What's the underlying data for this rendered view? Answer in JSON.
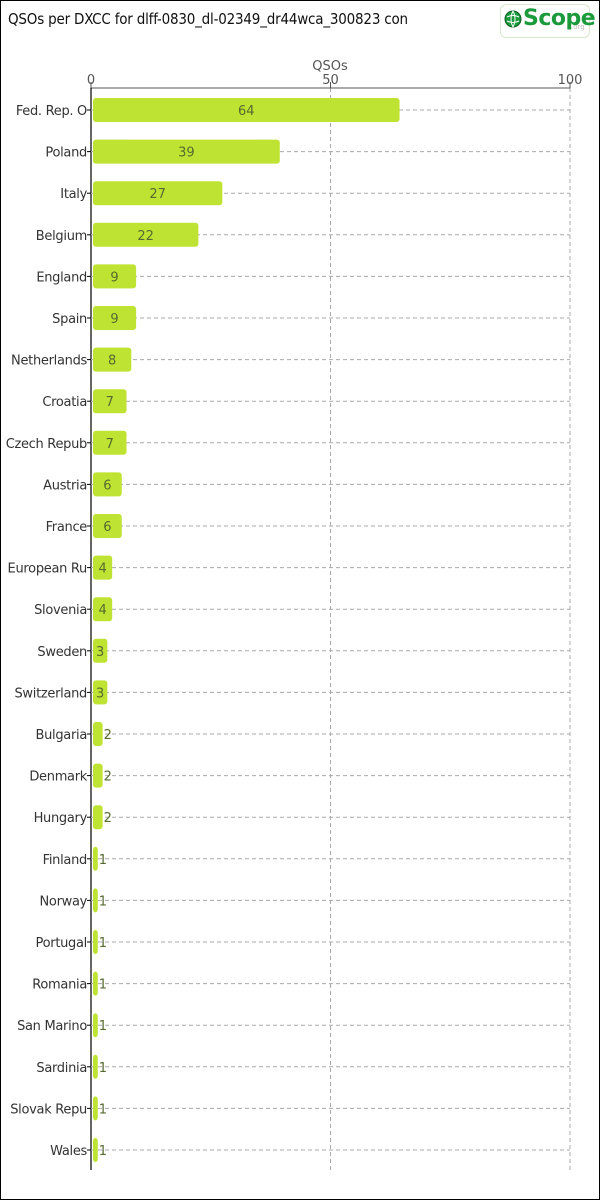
{
  "title": "QSOs per DXCC for dlff-0830_dl-02349_dr44wca_300823 con",
  "logo": {
    "text": "Scope",
    "sub": ".org",
    "icon": "qrz-globe-icon"
  },
  "colors": {
    "bar": "#bfe332",
    "grid": "#aaaaaa",
    "axis": "#000000"
  },
  "chart_data": {
    "type": "bar",
    "orientation": "horizontal",
    "title": "QSOs per DXCC for dlff-0830_dl-02349_dr44wca_300823 con",
    "xlabel": "QSOs",
    "ylabel": "",
    "xlim": [
      0,
      100
    ],
    "xticks": [
      0,
      50,
      100
    ],
    "grid": true,
    "categories": [
      "Fed. Rep. O",
      "Poland",
      "Italy",
      "Belgium",
      "England",
      "Spain",
      "Netherlands",
      "Croatia",
      "Czech Repub",
      "Austria",
      "France",
      "European Ru",
      "Slovenia",
      "Sweden",
      "Switzerland",
      "Bulgaria",
      "Denmark",
      "Hungary",
      "Finland",
      "Norway",
      "Portugal",
      "Romania",
      "San Marino",
      "Sardinia",
      "Slovak Repu",
      "Wales"
    ],
    "values": [
      64,
      39,
      27,
      22,
      9,
      9,
      8,
      7,
      7,
      6,
      6,
      4,
      4,
      3,
      3,
      2,
      2,
      2,
      1,
      1,
      1,
      1,
      1,
      1,
      1,
      1
    ]
  }
}
